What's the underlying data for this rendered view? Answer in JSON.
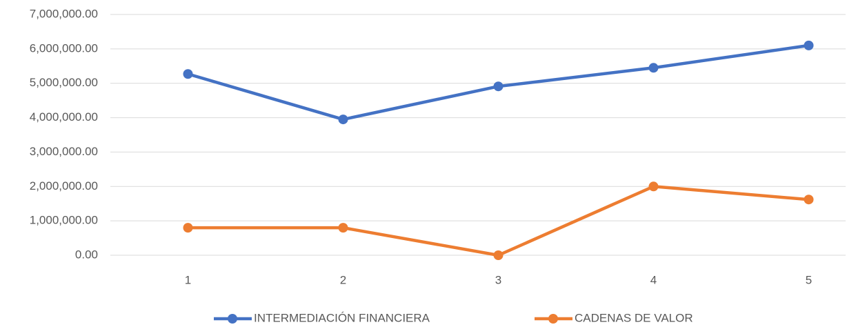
{
  "chart_data": {
    "type": "line",
    "categories": [
      "1",
      "2",
      "3",
      "4",
      "5"
    ],
    "series": [
      {
        "name": "INTERMEDIACIÓN FINANCIERA",
        "color": "#4472c4",
        "values": [
          5270000,
          3950000,
          4910000,
          5450000,
          6100000
        ]
      },
      {
        "name": "CADENAS DE VALOR",
        "color": "#ed7d31",
        "values": [
          800000,
          800000,
          0,
          2000000,
          1620000
        ]
      }
    ],
    "ylim": [
      0,
      7000000
    ],
    "yticks": [
      {
        "value": 0,
        "label": "0.00"
      },
      {
        "value": 1000000,
        "label": "1,000,000.00"
      },
      {
        "value": 2000000,
        "label": "2,000,000.00"
      },
      {
        "value": 3000000,
        "label": "3,000,000.00"
      },
      {
        "value": 4000000,
        "label": "4,000,000.00"
      },
      {
        "value": 5000000,
        "label": "5,000,000.00"
      },
      {
        "value": 6000000,
        "label": "6,000,000.00"
      },
      {
        "value": 7000000,
        "label": "7,000,000.00"
      }
    ],
    "grid": true,
    "legend": "bottom"
  }
}
